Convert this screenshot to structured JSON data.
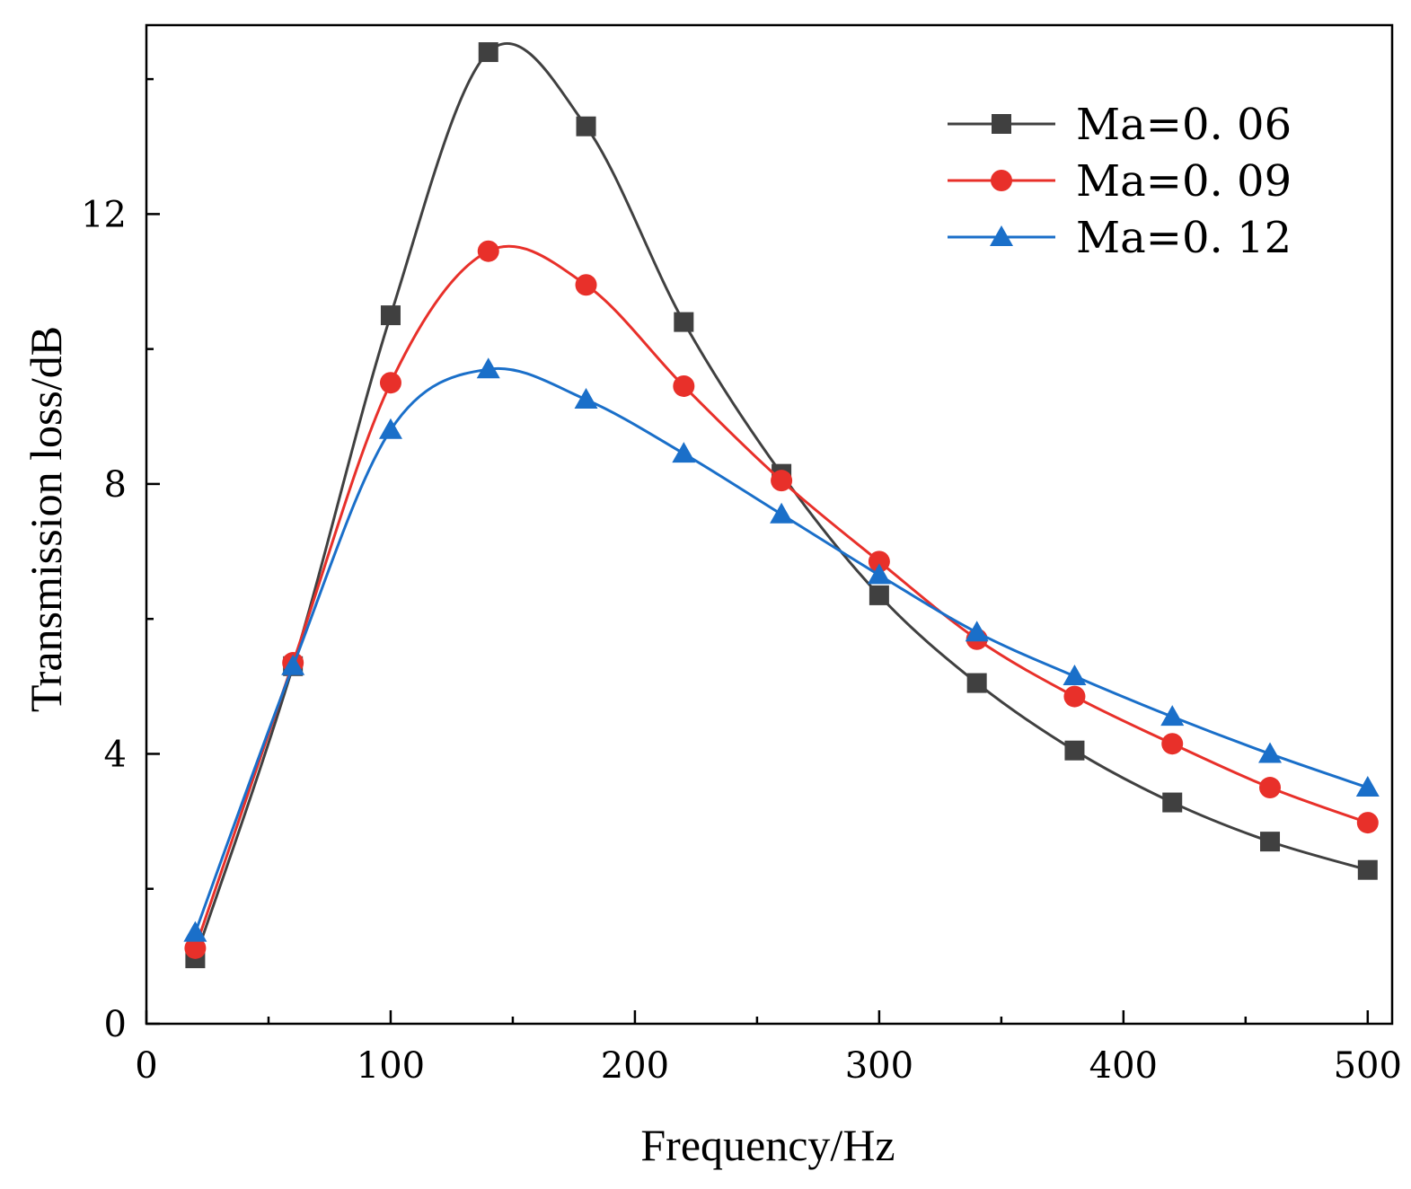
{
  "chart_data": {
    "type": "line",
    "title": "",
    "xlabel": "Frequency/Hz",
    "ylabel": "Transmission loss/dB",
    "xlim": [
      0,
      510
    ],
    "ylim": [
      0,
      14.8
    ],
    "xticks_major": [
      0,
      100,
      200,
      300,
      400,
      500
    ],
    "xticks_minor": [
      50,
      150,
      250,
      350,
      450
    ],
    "yticks_major": [
      0,
      4,
      8,
      12
    ],
    "yticks_minor": [
      2,
      6,
      10,
      14
    ],
    "grid": false,
    "legend_position": "top-right",
    "x": [
      20,
      60,
      100,
      140,
      180,
      220,
      260,
      300,
      340,
      380,
      420,
      460,
      500
    ],
    "series": [
      {
        "name": "Ma=0. 06",
        "color": "#404040",
        "marker": "square",
        "values": [
          0.97,
          5.3,
          10.5,
          14.4,
          13.3,
          10.4,
          8.15,
          6.35,
          5.05,
          4.05,
          3.28,
          2.7,
          2.28
        ]
      },
      {
        "name": "Ma=0. 09",
        "color": "#e8302a",
        "marker": "circle",
        "values": [
          1.12,
          5.35,
          9.5,
          11.45,
          10.95,
          9.45,
          8.05,
          6.85,
          5.7,
          4.85,
          4.15,
          3.5,
          2.98
        ]
      },
      {
        "name": "Ma=0. 12",
        "color": "#1a6fc9",
        "marker": "triangle",
        "values": [
          1.35,
          5.3,
          8.8,
          9.7,
          9.25,
          8.45,
          7.55,
          6.65,
          5.8,
          5.15,
          4.55,
          4.0,
          3.5
        ]
      }
    ]
  }
}
